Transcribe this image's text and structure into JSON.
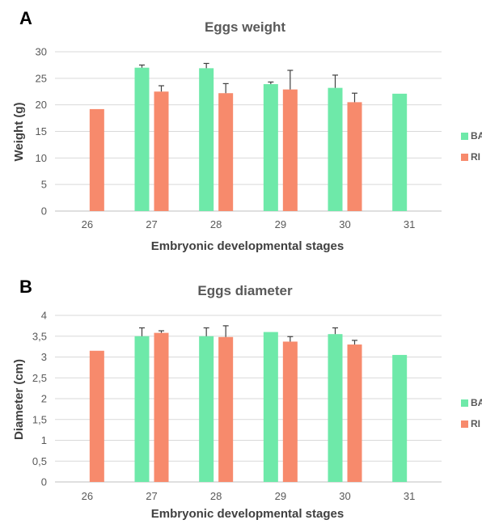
{
  "chart_data": [
    {
      "type": "bar",
      "panel_letter": "A",
      "title": "Eggs weight",
      "xlabel": "Embryonic developmental stages",
      "ylabel": "Weight (g)",
      "categories": [
        "26",
        "27",
        "28",
        "29",
        "30",
        "31"
      ],
      "ylim": [
        0,
        30
      ],
      "yticks": [
        "0",
        "5",
        "10",
        "15",
        "20",
        "25",
        "30"
      ],
      "grid": true,
      "legend_position": "right",
      "series": [
        {
          "name": "BA",
          "color": "#6ee9a9",
          "values": [
            null,
            27.0,
            26.9,
            23.9,
            23.2,
            22.1
          ],
          "errors": [
            null,
            0.5,
            0.9,
            0.4,
            2.4,
            null
          ]
        },
        {
          "name": "RI",
          "color": "#f78a6c",
          "values": [
            19.2,
            22.5,
            22.2,
            22.9,
            20.5,
            null
          ],
          "errors": [
            null,
            1.1,
            1.8,
            3.6,
            1.7,
            null
          ]
        }
      ]
    },
    {
      "type": "bar",
      "panel_letter": "B",
      "title": "Eggs diameter",
      "xlabel": "Embryonic developmental stages",
      "ylabel": "Diameter (cm)",
      "categories": [
        "26",
        "27",
        "28",
        "29",
        "30",
        "31"
      ],
      "ylim": [
        0,
        4
      ],
      "yticks": [
        "0",
        "0,5",
        "1",
        "1,5",
        "2",
        "2,5",
        "3",
        "3,5",
        "4"
      ],
      "grid": true,
      "legend_position": "right",
      "series": [
        {
          "name": "BA",
          "color": "#6ee9a9",
          "values": [
            null,
            3.5,
            3.5,
            3.6,
            3.55,
            3.05
          ],
          "errors": [
            null,
            0.2,
            0.2,
            null,
            0.15,
            null
          ]
        },
        {
          "name": "RI",
          "color": "#f78a6c",
          "values": [
            3.15,
            3.58,
            3.48,
            3.37,
            3.3,
            null
          ],
          "errors": [
            null,
            0.05,
            0.27,
            0.12,
            0.1,
            null
          ]
        }
      ]
    }
  ]
}
